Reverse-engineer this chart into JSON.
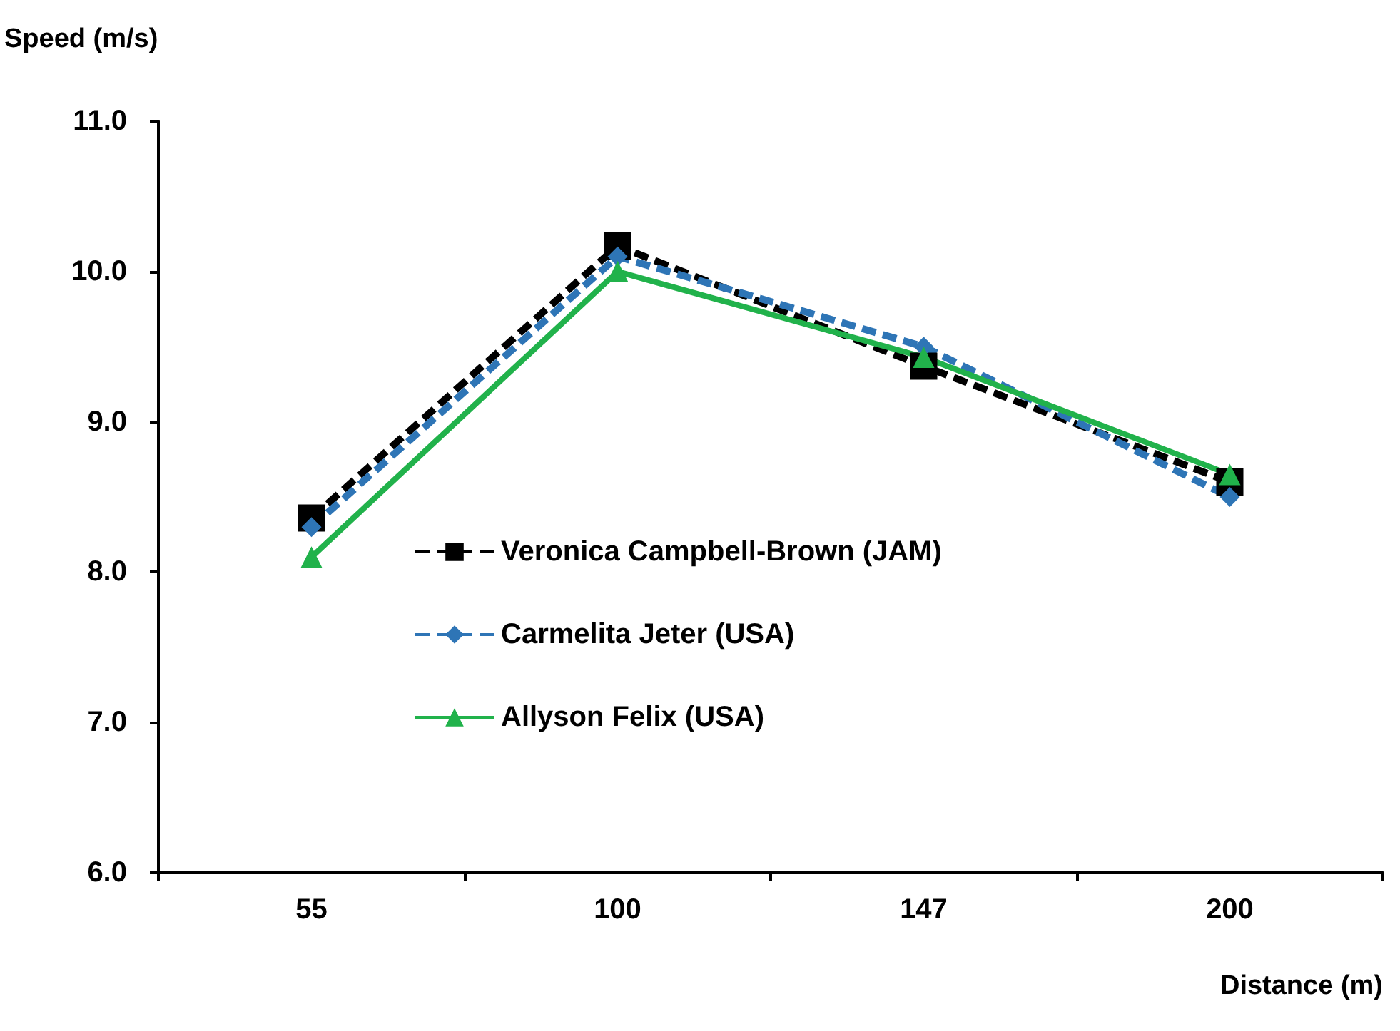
{
  "chart_data": {
    "type": "line",
    "ylabel": "Speed (m/s)",
    "xlabel": "Distance (m)",
    "categories": [
      "55",
      "100",
      "147",
      "200"
    ],
    "ylim": [
      6,
      11
    ],
    "yticks": [
      {
        "value": 6,
        "label": "6.0"
      },
      {
        "value": 7,
        "label": "7.0"
      },
      {
        "value": 8,
        "label": "8.0"
      },
      {
        "value": 9,
        "label": "9.0"
      },
      {
        "value": 10,
        "label": "10.0"
      },
      {
        "value": 11,
        "label": "11.0"
      }
    ],
    "grid": false,
    "legend": "center",
    "series": [
      {
        "name": "Veronica Campbell-Brown (JAM)",
        "color": "#000000",
        "marker": "square",
        "line_style": "dashed",
        "values": [
          8.36,
          10.17,
          9.37,
          8.6
        ]
      },
      {
        "name": "Carmelita Jeter (USA)",
        "color": "#2e75b6",
        "marker": "diamond",
        "line_style": "dashed",
        "values": [
          8.3,
          10.1,
          9.5,
          8.5
        ]
      },
      {
        "name": "Allyson Felix (USA)",
        "color": "#21b24b",
        "marker": "triangle",
        "line_style": "solid",
        "values": [
          8.1,
          10.0,
          9.43,
          8.65
        ]
      }
    ]
  }
}
